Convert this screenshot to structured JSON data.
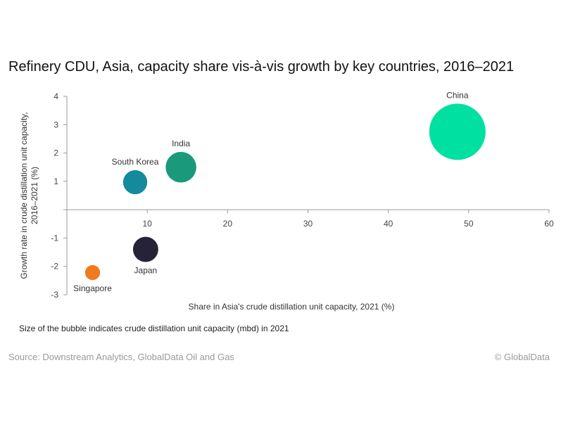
{
  "chart_data": {
    "type": "scatter",
    "title": "Refinery CDU, Asia, capacity share vis-à-vis growth by key countries, 2016–2021",
    "xlabel": "Share in Asia's crude distillation unit capacity, 2021 (%)",
    "ylabel": "Growth rate in crude distillation unit capacity, 2016–2021 (%)",
    "ylabel_lines": [
      "Growth rate in crude distillation unit capacity,",
      "2016–2021 (%)"
    ],
    "xlim": [
      0,
      60
    ],
    "ylim": [
      -3,
      4
    ],
    "xticks": [
      "10",
      "20",
      "30",
      "40",
      "50",
      "60"
    ],
    "yticks": [
      "-3",
      "-2",
      "-1",
      "",
      "1",
      "2",
      "3",
      "4"
    ],
    "ytick_values": [
      -3,
      -2,
      -1,
      0,
      1,
      2,
      3,
      4
    ],
    "xtick_values": [
      10,
      20,
      30,
      40,
      50,
      60
    ],
    "points": [
      {
        "name": "China",
        "x": 48.6,
        "y": 2.75,
        "size": 16.9,
        "color": "#00e0a0",
        "label_pos": "above"
      },
      {
        "name": "India",
        "x": 14.2,
        "y": 1.5,
        "size": 5.0,
        "color": "#1a9a7a",
        "label_pos": "above"
      },
      {
        "name": "South Korea",
        "x": 8.5,
        "y": 0.97,
        "size": 3.1,
        "color": "#148a9c",
        "label_pos": "above"
      },
      {
        "name": "Japan",
        "x": 9.8,
        "y": -1.4,
        "size": 3.4,
        "color": "#262338",
        "label_pos": "below"
      },
      {
        "name": "Singapore",
        "x": 3.2,
        "y": -2.22,
        "size": 1.2,
        "color": "#f07a20",
        "label_pos": "below"
      }
    ]
  },
  "note": "Size of the bubble  indicates crude distillation unit capacity (mbd) in 2021",
  "source": "Source: Downstream Analytics, GlobalData Oil and Gas",
  "copyright": "© GlobalData"
}
